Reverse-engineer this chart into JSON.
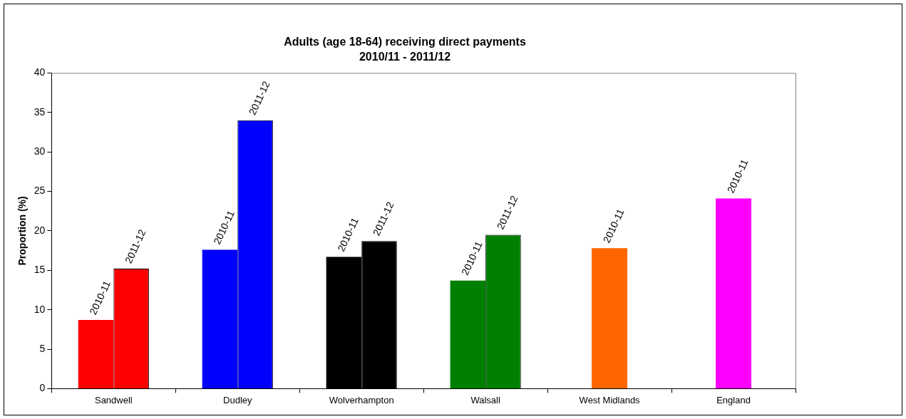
{
  "chart_data": {
    "type": "bar",
    "title": "Adults (age 18-64) receiving direct payments",
    "subtitle": "2010/11 - 2011/12",
    "ylabel": "Proportion (%)",
    "categories": [
      "Sandwell",
      "Dudley",
      "Wolverhampton",
      "Walsall",
      "West Midlands",
      "England"
    ],
    "series": [
      {
        "name": "2010-11",
        "colors": [
          "#ff0000",
          "#0000ff",
          "#000000",
          "#008000",
          "#ff6600",
          "#ff00ff"
        ],
        "values": [
          8.7,
          17.6,
          16.7,
          13.7,
          17.8,
          24.1
        ]
      },
      {
        "name": "2011-12",
        "colors": [
          "#ff0000",
          "#0000ff",
          "#000000",
          "#008000",
          null,
          null
        ],
        "values": [
          15.2,
          34.0,
          18.7,
          19.5,
          null,
          null
        ]
      }
    ],
    "ylim": [
      0,
      40
    ],
    "yticks": [
      0,
      5,
      10,
      15,
      20,
      25,
      30,
      35,
      40
    ],
    "grid": false,
    "legend": false
  }
}
